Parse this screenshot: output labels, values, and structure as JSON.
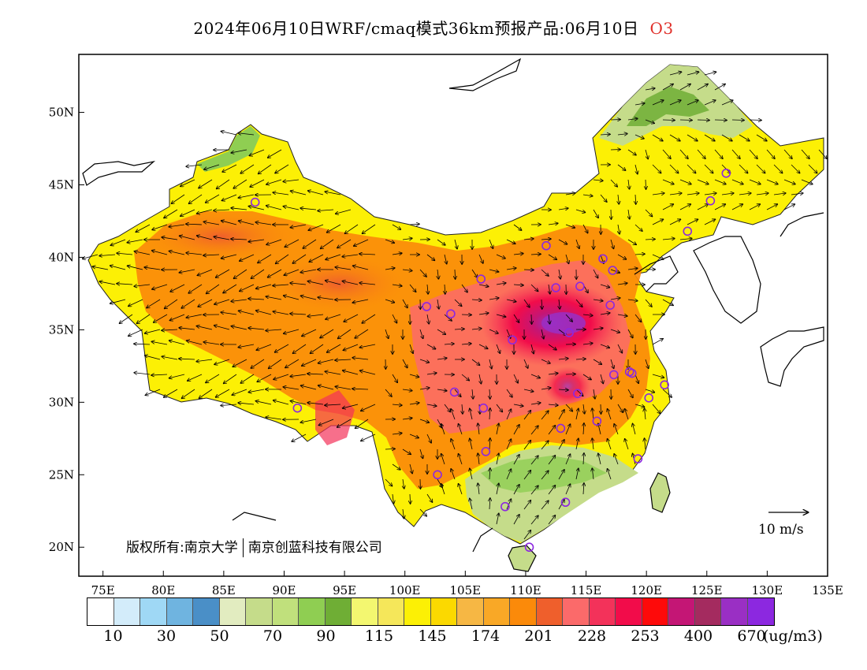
{
  "title": {
    "text": "2024年06月10日WRF/cmaq模式36km预报产品:06月10日",
    "pollutant": "O3"
  },
  "map": {
    "lon_range": [
      73,
      135
    ],
    "lat_range": [
      18,
      54
    ],
    "lon_ticks": [
      "75E",
      "80E",
      "85E",
      "90E",
      "95E",
      "100E",
      "105E",
      "110E",
      "115E",
      "120E",
      "125E",
      "130E",
      "135E"
    ],
    "lat_ticks": [
      "50N",
      "45N",
      "40N",
      "35N",
      "30N",
      "25N",
      "20N"
    ],
    "lon_tick_values": [
      75,
      80,
      85,
      90,
      95,
      100,
      105,
      110,
      115,
      120,
      125,
      130,
      135
    ],
    "lat_tick_values": [
      50,
      45,
      40,
      35,
      30,
      25,
      20
    ],
    "wind_reference": "10 m/s",
    "copyright_label": "版权所有:",
    "copyright_org1": "南京大学",
    "copyright_org2": "南京创蓝科技有限公司",
    "icons": [
      "station-circle-icon",
      "wind-arrow-icon"
    ]
  },
  "colorbar": {
    "colors": [
      "#ffffff",
      "#d3ecfa",
      "#9fd8f5",
      "#6fb4e0",
      "#4a8fc7",
      "#e2ecc0",
      "#c5dc8a",
      "#c0e07c",
      "#8fce52",
      "#6fae35",
      "#f3f770",
      "#f5e75a",
      "#fcf005",
      "#fbd900",
      "#f6b744",
      "#f9a826",
      "#fb8a0a",
      "#ef5f2c",
      "#fb6a6a",
      "#f3325a",
      "#f20c4a",
      "#fe0a0a",
      "#c41675",
      "#a42b5f",
      "#9a2fc4",
      "#8c28e0"
    ],
    "labels": [
      "10",
      "30",
      "50",
      "70",
      "90",
      "115",
      "145",
      "174",
      "201",
      "228",
      "253",
      "400",
      "670"
    ],
    "unit": "(ug/m3)"
  }
}
